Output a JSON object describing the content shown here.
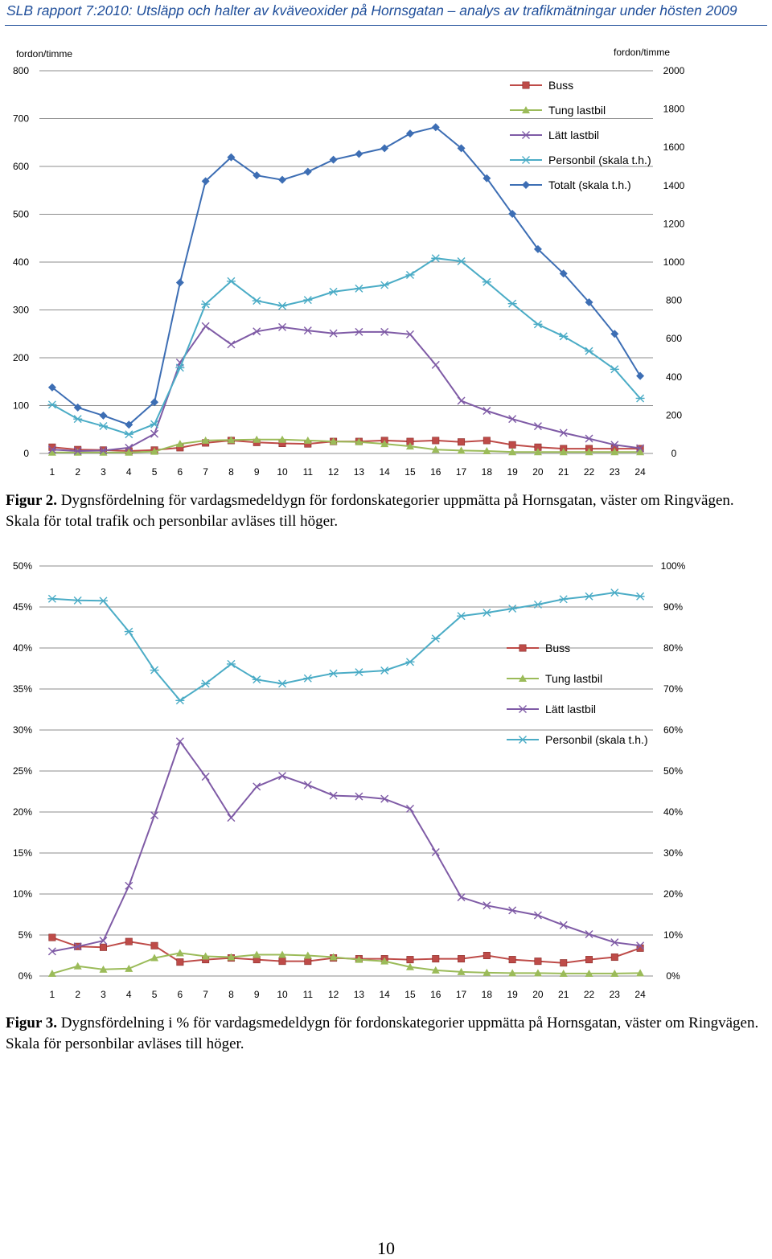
{
  "header": {
    "title": "SLB rapport 7:2010: Utsläpp och halter av kväveoxider på Hornsgatan – analys av trafikmätningar under hösten 2009"
  },
  "figure2": {
    "label": "Figur 2.",
    "caption": " Dygnsfördelning för vardagsmedeldygn för fordonskategorier uppmätta på Hornsgatan, väster om Ringvägen. Skala för total trafik och personbilar avläses till höger."
  },
  "figure3": {
    "label": "Figur 3.",
    "caption": " Dygnsfördelning i % för vardagsmedeldygn för fordonskategorier uppmätta på Hornsgatan, väster om Ringvägen. Skala för personbilar avläses till höger."
  },
  "page_number": "10",
  "chart_data": [
    {
      "type": "line",
      "title": "",
      "ylabel": "fordon/timme",
      "ylabel_right": "fordon/timme",
      "categories": [
        "1",
        "2",
        "3",
        "4",
        "5",
        "6",
        "7",
        "8",
        "9",
        "10",
        "11",
        "12",
        "13",
        "14",
        "15",
        "16",
        "17",
        "18",
        "19",
        "20",
        "21",
        "22",
        "23",
        "24"
      ],
      "ylim": [
        0,
        800
      ],
      "yticks": [
        "0",
        "100",
        "200",
        "300",
        "400",
        "500",
        "600",
        "700",
        "800"
      ],
      "ylim_right": [
        0,
        2000
      ],
      "yticks_right": [
        "0",
        "200",
        "400",
        "600",
        "800",
        "1000",
        "1200",
        "1400",
        "1600",
        "1800",
        "2000"
      ],
      "grid": true,
      "legend_position": "top-right",
      "series": [
        {
          "name": "Buss",
          "axis": "left",
          "color": "#be4b48",
          "marker": "square",
          "values": [
            13,
            8,
            7,
            5,
            7,
            12,
            22,
            27,
            23,
            21,
            20,
            25,
            25,
            27,
            25,
            27,
            24,
            27,
            18,
            13,
            10,
            10,
            10,
            10
          ]
        },
        {
          "name": "Tung lastbil",
          "axis": "left",
          "color": "#9bbb59",
          "marker": "triangle",
          "values": [
            2,
            2,
            2,
            2,
            4,
            20,
            27,
            28,
            29,
            29,
            27,
            25,
            24,
            20,
            15,
            8,
            6,
            5,
            3,
            3,
            3,
            3,
            3,
            3
          ]
        },
        {
          "name": "Lätt lastbil",
          "axis": "left",
          "color": "#7f5ba6",
          "marker": "x",
          "values": [
            8,
            5,
            6,
            12,
            41,
            190,
            266,
            228,
            255,
            264,
            257,
            251,
            254,
            254,
            249,
            185,
            110,
            89,
            72,
            57,
            43,
            31,
            18,
            11
          ]
        },
        {
          "name": "Personbil (skala t.h.)",
          "axis": "right",
          "color": "#4bacc6",
          "marker": "star",
          "values": [
            255,
            180,
            143,
            100,
            153,
            448,
            780,
            900,
            798,
            771,
            802,
            845,
            862,
            880,
            933,
            1020,
            1004,
            896,
            783,
            675,
            612,
            535,
            440,
            288
          ]
        },
        {
          "name": "Totalt (skala t.h.)",
          "axis": "right",
          "color": "#3d6eb4",
          "marker": "diamond",
          "values": [
            345,
            240,
            198,
            150,
            268,
            893,
            1423,
            1548,
            1453,
            1430,
            1472,
            1535,
            1565,
            1595,
            1672,
            1705,
            1595,
            1438,
            1252,
            1068,
            940,
            790,
            625,
            405
          ]
        }
      ]
    },
    {
      "type": "line",
      "title": "",
      "categories": [
        "1",
        "2",
        "3",
        "4",
        "5",
        "6",
        "7",
        "8",
        "9",
        "10",
        "11",
        "12",
        "13",
        "14",
        "15",
        "16",
        "17",
        "18",
        "19",
        "20",
        "21",
        "22",
        "23",
        "24"
      ],
      "ylim": [
        0,
        50
      ],
      "yticks": [
        "0%",
        "5%",
        "10%",
        "15%",
        "20%",
        "25%",
        "30%",
        "35%",
        "40%",
        "45%",
        "50%"
      ],
      "ylim_right": [
        0,
        100
      ],
      "yticks_right": [
        "0%",
        "10%",
        "20%",
        "30%",
        "40%",
        "50%",
        "60%",
        "70%",
        "80%",
        "90%",
        "100%"
      ],
      "grid": true,
      "legend_position": "right",
      "series": [
        {
          "name": "Buss",
          "axis": "left",
          "color": "#be4b48",
          "marker": "square",
          "values": [
            4.7,
            3.6,
            3.5,
            4.2,
            3.7,
            1.7,
            2.0,
            2.2,
            2.0,
            1.8,
            1.8,
            2.2,
            2.1,
            2.1,
            2.0,
            2.1,
            2.1,
            2.5,
            2.0,
            1.8,
            1.6,
            2.0,
            2.3,
            3.4
          ]
        },
        {
          "name": "Tung lastbil",
          "axis": "left",
          "color": "#9bbb59",
          "marker": "triangle",
          "values": [
            0.3,
            1.2,
            0.8,
            0.9,
            2.2,
            2.8,
            2.4,
            2.3,
            2.6,
            2.6,
            2.5,
            2.3,
            2.0,
            1.8,
            1.1,
            0.7,
            0.5,
            0.4,
            0.35,
            0.35,
            0.3,
            0.3,
            0.3,
            0.35
          ]
        },
        {
          "name": "Lätt lastbil",
          "axis": "left",
          "color": "#7f5ba6",
          "marker": "x",
          "values": [
            3.0,
            3.6,
            4.3,
            11.0,
            19.6,
            28.6,
            24.3,
            19.3,
            23.1,
            24.4,
            23.3,
            22.0,
            21.9,
            21.6,
            20.4,
            15.1,
            9.6,
            8.6,
            8.0,
            7.4,
            6.2,
            5.1,
            4.1,
            3.7
          ]
        },
        {
          "name": "Personbil (skala t.h.)",
          "axis": "right",
          "color": "#4bacc6",
          "marker": "star",
          "values": [
            92.0,
            91.6,
            91.5,
            84.0,
            74.6,
            67.2,
            71.3,
            76.1,
            72.3,
            71.3,
            72.6,
            73.8,
            74.1,
            74.5,
            76.6,
            82.3,
            87.8,
            88.6,
            89.6,
            90.6,
            91.9,
            92.6,
            93.5,
            92.6
          ]
        }
      ]
    }
  ]
}
